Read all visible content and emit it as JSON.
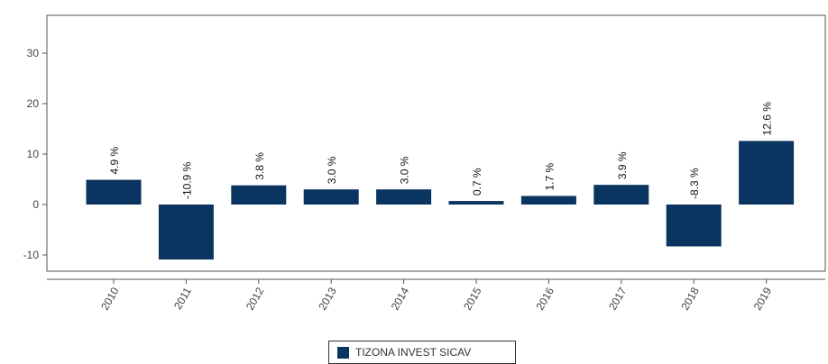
{
  "chart_data": {
    "type": "bar",
    "categories": [
      "2010",
      "2011",
      "2012",
      "2013",
      "2014",
      "2015",
      "2016",
      "2017",
      "2018",
      "2019"
    ],
    "series": [
      {
        "name": "TIZONA INVEST SICAV",
        "values": [
          4.9,
          -10.9,
          3.8,
          3.0,
          3.0,
          0.7,
          1.7,
          3.9,
          -8.3,
          12.6
        ],
        "labels": [
          "4.9 %",
          "-10.9 %",
          "3.8 %",
          "3.0 %",
          "3.0 %",
          "0.7 %",
          "1.7 %",
          "3.9 %",
          "-8.3 %",
          "12.6 %"
        ],
        "color": "#0a3560"
      }
    ],
    "yticks": [
      30,
      20,
      10,
      0,
      -10
    ],
    "ylim": [
      -13,
      37
    ],
    "grid": false,
    "legend_position": "bottom-center",
    "title": "",
    "xlabel": "",
    "ylabel": ""
  }
}
